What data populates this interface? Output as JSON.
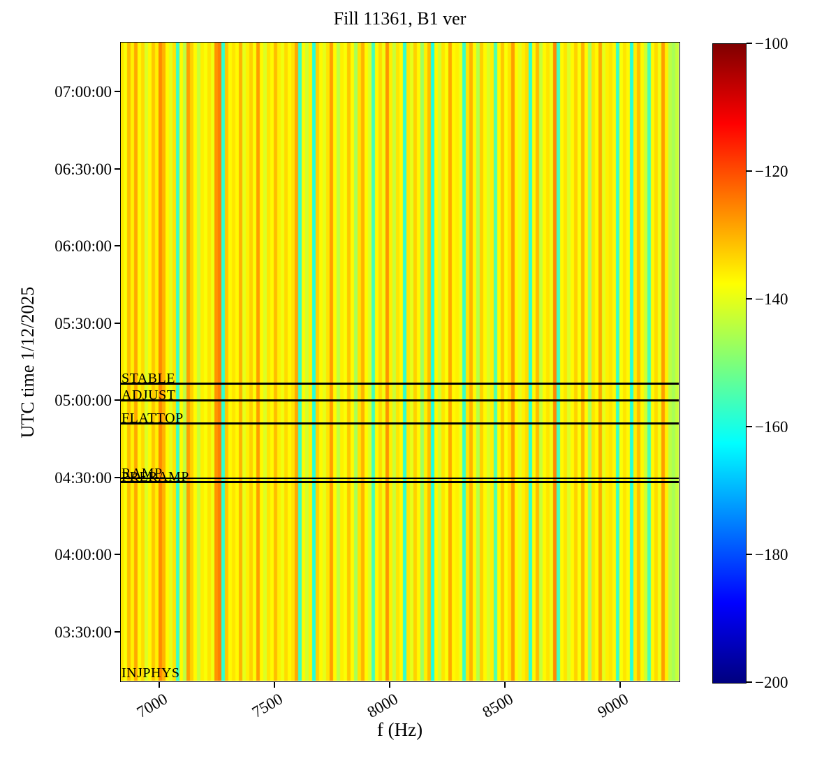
{
  "figure": {
    "title": "Fill 11361, B1 ver"
  },
  "chart_data": {
    "type": "heatmap",
    "title": "Fill 11361, B1 ver",
    "xlabel": "f (Hz)",
    "ylabel": "UTC time 1/12/2025",
    "grid": false,
    "x_axis": {
      "unit": "Hz",
      "min": 6833,
      "max": 9254,
      "ticks": [
        7000,
        7500,
        8000,
        8500,
        9000
      ],
      "tick_rotation_deg": 30
    },
    "y_axis": {
      "unit": "UTC time",
      "date": "1/12/2025",
      "start_min": 191,
      "end_min": 439,
      "ticks": [
        {
          "label": "07:00:00",
          "min": 420
        },
        {
          "label": "06:30:00",
          "min": 390
        },
        {
          "label": "06:00:00",
          "min": 360
        },
        {
          "label": "05:30:00",
          "min": 330
        },
        {
          "label": "05:00:00",
          "min": 300
        },
        {
          "label": "04:30:00",
          "min": 270
        },
        {
          "label": "04:00:00",
          "min": 240
        },
        {
          "label": "03:30:00",
          "min": 210
        }
      ]
    },
    "colorbar": {
      "colormap": "jet",
      "vmin": -200,
      "vmax": -100,
      "ticks": [
        {
          "label": "−100",
          "value": -100
        },
        {
          "label": "−120",
          "value": -120
        },
        {
          "label": "−140",
          "value": -140
        },
        {
          "label": "−160",
          "value": -160
        },
        {
          "label": "−180",
          "value": -180
        },
        {
          "label": "−200",
          "value": -200
        }
      ],
      "gradient_stops": [
        {
          "pos": 0.0,
          "color": "#00007f"
        },
        {
          "pos": 0.125,
          "color": "#0000ff"
        },
        {
          "pos": 0.375,
          "color": "#00ffff"
        },
        {
          "pos": 0.5,
          "color": "#7dff7a"
        },
        {
          "pos": 0.625,
          "color": "#ffff00"
        },
        {
          "pos": 0.875,
          "color": "#ff0000"
        },
        {
          "pos": 1.0,
          "color": "#7f0000"
        }
      ]
    },
    "phase_markers": [
      {
        "label": "STABLE",
        "time": "05:06:30",
        "min": 306.5,
        "line": true
      },
      {
        "label": "ADJUST",
        "time": "05:00:00",
        "min": 300.0,
        "line": true
      },
      {
        "label": "FLATTOP",
        "time": "04:51:00",
        "min": 291.0,
        "line": true
      },
      {
        "label": "RAMP",
        "time": "04:29:45",
        "min": 269.7,
        "line": true
      },
      {
        "label": "PRERAMP",
        "time": "04:28:15",
        "min": 268.2,
        "line": true
      },
      {
        "label": "INJPHYS",
        "time": "03:12:00",
        "min": 192.0,
        "line": false
      }
    ],
    "spectrum": {
      "description": "Per-frequency-column power (dB), constant over time; columns span x_axis.min to x_axis.max",
      "n_cols": 160,
      "values_dB": [
        -135,
        -138,
        -131,
        -136,
        -129,
        -137,
        -134,
        -141,
        -137,
        -132,
        -136,
        -126,
        -130,
        -137,
        -140,
        -135,
        -157,
        -137,
        -144,
        -128,
        -133,
        -137,
        -143,
        -136,
        -138,
        -135,
        -139,
        -127,
        -125,
        -158,
        -132,
        -137,
        -135,
        -137,
        -130,
        -140,
        -136,
        -133,
        -138,
        -128,
        -137,
        -141,
        -135,
        -137,
        -131,
        -136,
        -139,
        -134,
        -137,
        -135,
        -129,
        -157,
        -137,
        -142,
        -136,
        -159,
        -133,
        -137,
        -140,
        -135,
        -128,
        -137,
        -144,
        -136,
        -138,
        -132,
        -137,
        -146,
        -135,
        -130,
        -137,
        -141,
        -156,
        -137,
        -134,
        -139,
        -127,
        -136,
        -143,
        -135,
        -137,
        -158,
        -135,
        -140,
        -133,
        -137,
        -147,
        -136,
        -131,
        -160,
        -137,
        -142,
        -135,
        -138,
        -129,
        -137,
        -136,
        -139,
        -157,
        -135,
        -130,
        -137,
        -145,
        -133,
        -137,
        -141,
        -136,
        -155,
        -137,
        -132,
        -138,
        -135,
        -128,
        -137,
        -140,
        -136,
        -134,
        -158,
        -137,
        -131,
        -143,
        -137,
        -135,
        -139,
        -126,
        -156,
        -137,
        -135,
        -141,
        -137,
        -133,
        -138,
        -130,
        -137,
        -146,
        -135,
        -137,
        -129,
        -140,
        -136,
        -135,
        -137,
        -157,
        -138,
        -135,
        -137,
        -159,
        -136,
        -131,
        -137,
        -142,
        -155,
        -137,
        -134,
        -139,
        -128,
        -136,
        -144,
        -146,
        -143
      ]
    }
  }
}
